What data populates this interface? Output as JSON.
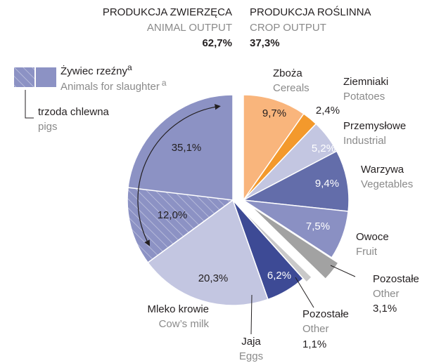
{
  "chart_data": {
    "type": "pie",
    "groups": [
      {
        "name": "PRODUKCJA ZWIERZĘCA",
        "name_en": "ANIMAL OUTPUT",
        "value": 62.7,
        "value_label": "62,7%"
      },
      {
        "name": "PRODUKCJA ROŚLINNA",
        "name_en": "CROP OUTPUT",
        "value": 37.3,
        "value_label": "37,3%"
      }
    ],
    "slices": [
      {
        "name": "Zboża",
        "name_en": "Cereals",
        "value": 9.7,
        "value_label": "9,7%",
        "color": "#f9b57c"
      },
      {
        "name": "Ziemniaki",
        "name_en": "Potatoes",
        "value": 2.4,
        "value_label": "2,4%",
        "color": "#f3992c"
      },
      {
        "name": "Przemysłowe",
        "name_en": "Industrial",
        "value": 5.2,
        "value_label": "5,2%",
        "color": "#c3c6e1"
      },
      {
        "name": "Warzywa",
        "name_en": "Vegetables",
        "value": 9.4,
        "value_label": "9,4%",
        "color": "#636daa"
      },
      {
        "name": "Owoce",
        "name_en": "Fruit",
        "value": 7.5,
        "value_label": "7,5%",
        "color": "#8a90c3"
      },
      {
        "name": "Pozostałe",
        "name_en": "Other",
        "value": 3.1,
        "value_label": "3,1%",
        "color": "#a2a2a2"
      },
      {
        "name": "Pozostałe",
        "name_en": "Other",
        "value": 1.1,
        "value_label": "1,1%",
        "color": "#c9c9c9"
      },
      {
        "name": "Jaja",
        "name_en": "Eggs",
        "value": 6.2,
        "value_label": "6,2%",
        "color": "#3d4a95"
      },
      {
        "name": "Mleko krowie",
        "name_en": "Cow’s milk",
        "value": 20.3,
        "value_label": "20,3%",
        "color": "#c3c6e1"
      },
      {
        "name": "Żywiec rzeźny",
        "name_en": "Animals for slaughter",
        "note": "a",
        "value": 35.1,
        "value_label": "35,1%",
        "color": "#8c92c4"
      }
    ],
    "sub_slice": {
      "name": "trzoda chlewna",
      "name_en": "pigs",
      "value": 12.0,
      "value_label": "12,0%",
      "color": "#8c92c4"
    }
  }
}
